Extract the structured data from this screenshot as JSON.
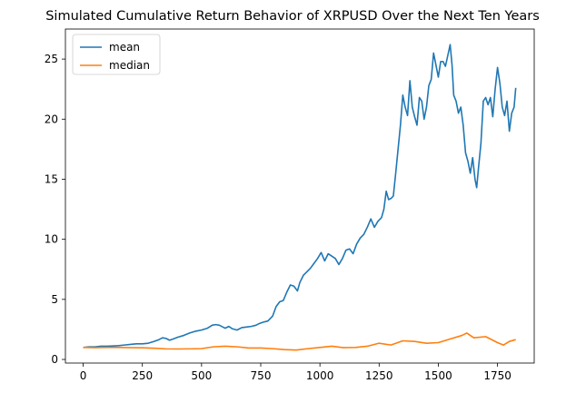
{
  "chart_data": {
    "type": "line",
    "title": "Simulated Cumulative Return Behavior of XRPUSD Over the Next Ten Years",
    "xlabel": "",
    "ylabel": "",
    "xlim": [
      -75,
      1905
    ],
    "ylim": [
      -0.3,
      27.5
    ],
    "xticks": [
      0,
      250,
      500,
      750,
      1000,
      1250,
      1500,
      1750
    ],
    "yticks": [
      0,
      5,
      10,
      15,
      20,
      25
    ],
    "grid": false,
    "legend": "top-left",
    "series": [
      {
        "name": "mean",
        "color": "#1f77b4",
        "points": [
          [
            0,
            1.0
          ],
          [
            25,
            1.05
          ],
          [
            50,
            1.05
          ],
          [
            75,
            1.1
          ],
          [
            100,
            1.1
          ],
          [
            125,
            1.12
          ],
          [
            150,
            1.15
          ],
          [
            175,
            1.2
          ],
          [
            200,
            1.25
          ],
          [
            225,
            1.3
          ],
          [
            250,
            1.3
          ],
          [
            275,
            1.35
          ],
          [
            300,
            1.5
          ],
          [
            320,
            1.65
          ],
          [
            335,
            1.8
          ],
          [
            350,
            1.75
          ],
          [
            365,
            1.6
          ],
          [
            380,
            1.7
          ],
          [
            400,
            1.85
          ],
          [
            425,
            2.0
          ],
          [
            450,
            2.2
          ],
          [
            475,
            2.35
          ],
          [
            500,
            2.45
          ],
          [
            525,
            2.6
          ],
          [
            545,
            2.85
          ],
          [
            560,
            2.9
          ],
          [
            575,
            2.85
          ],
          [
            590,
            2.7
          ],
          [
            600,
            2.6
          ],
          [
            615,
            2.75
          ],
          [
            630,
            2.55
          ],
          [
            650,
            2.45
          ],
          [
            670,
            2.65
          ],
          [
            690,
            2.7
          ],
          [
            710,
            2.75
          ],
          [
            730,
            2.85
          ],
          [
            745,
            3.0
          ],
          [
            760,
            3.1
          ],
          [
            780,
            3.2
          ],
          [
            800,
            3.6
          ],
          [
            815,
            4.4
          ],
          [
            830,
            4.8
          ],
          [
            845,
            4.9
          ],
          [
            860,
            5.6
          ],
          [
            875,
            6.2
          ],
          [
            890,
            6.1
          ],
          [
            905,
            5.7
          ],
          [
            915,
            6.4
          ],
          [
            930,
            7.0
          ],
          [
            945,
            7.3
          ],
          [
            960,
            7.6
          ],
          [
            975,
            8.0
          ],
          [
            990,
            8.4
          ],
          [
            1005,
            8.9
          ],
          [
            1020,
            8.2
          ],
          [
            1035,
            8.8
          ],
          [
            1050,
            8.6
          ],
          [
            1065,
            8.4
          ],
          [
            1080,
            7.9
          ],
          [
            1095,
            8.4
          ],
          [
            1110,
            9.1
          ],
          [
            1125,
            9.2
          ],
          [
            1140,
            8.8
          ],
          [
            1155,
            9.6
          ],
          [
            1170,
            10.1
          ],
          [
            1185,
            10.4
          ],
          [
            1200,
            11.0
          ],
          [
            1215,
            11.7
          ],
          [
            1230,
            11.0
          ],
          [
            1245,
            11.5
          ],
          [
            1260,
            11.8
          ],
          [
            1270,
            12.5
          ],
          [
            1280,
            14.0
          ],
          [
            1290,
            13.3
          ],
          [
            1300,
            13.4
          ],
          [
            1310,
            13.6
          ],
          [
            1320,
            15.5
          ],
          [
            1330,
            17.5
          ],
          [
            1340,
            19.5
          ],
          [
            1350,
            22.0
          ],
          [
            1360,
            21.0
          ],
          [
            1370,
            20.3
          ],
          [
            1380,
            23.2
          ],
          [
            1390,
            21.0
          ],
          [
            1400,
            20.2
          ],
          [
            1410,
            19.5
          ],
          [
            1420,
            21.8
          ],
          [
            1430,
            21.5
          ],
          [
            1440,
            20.0
          ],
          [
            1450,
            21.0
          ],
          [
            1460,
            22.8
          ],
          [
            1470,
            23.3
          ],
          [
            1480,
            25.5
          ],
          [
            1490,
            24.5
          ],
          [
            1500,
            23.5
          ],
          [
            1510,
            24.8
          ],
          [
            1520,
            24.8
          ],
          [
            1530,
            24.4
          ],
          [
            1540,
            25.3
          ],
          [
            1550,
            26.2
          ],
          [
            1558,
            24.5
          ],
          [
            1565,
            22.0
          ],
          [
            1575,
            21.5
          ],
          [
            1585,
            20.5
          ],
          [
            1595,
            21.0
          ],
          [
            1605,
            19.5
          ],
          [
            1615,
            17.2
          ],
          [
            1625,
            16.5
          ],
          [
            1635,
            15.5
          ],
          [
            1645,
            16.8
          ],
          [
            1655,
            15.0
          ],
          [
            1662,
            14.3
          ],
          [
            1670,
            16.0
          ],
          [
            1680,
            18.0
          ],
          [
            1690,
            21.5
          ],
          [
            1700,
            21.8
          ],
          [
            1710,
            21.2
          ],
          [
            1720,
            21.8
          ],
          [
            1730,
            20.2
          ],
          [
            1740,
            22.5
          ],
          [
            1750,
            24.3
          ],
          [
            1760,
            23.0
          ],
          [
            1770,
            21.0
          ],
          [
            1780,
            20.3
          ],
          [
            1790,
            21.5
          ],
          [
            1800,
            19.0
          ],
          [
            1810,
            20.5
          ],
          [
            1820,
            21.0
          ],
          [
            1827,
            22.6
          ]
        ]
      },
      {
        "name": "median",
        "color": "#ff7f0e",
        "points": [
          [
            0,
            1.0
          ],
          [
            50,
            0.98
          ],
          [
            100,
            1.0
          ],
          [
            150,
            1.0
          ],
          [
            200,
            0.98
          ],
          [
            250,
            0.97
          ],
          [
            300,
            0.93
          ],
          [
            350,
            0.88
          ],
          [
            400,
            0.87
          ],
          [
            450,
            0.88
          ],
          [
            500,
            0.9
          ],
          [
            550,
            1.05
          ],
          [
            600,
            1.1
          ],
          [
            650,
            1.05
          ],
          [
            700,
            0.95
          ],
          [
            750,
            0.95
          ],
          [
            800,
            0.9
          ],
          [
            850,
            0.82
          ],
          [
            900,
            0.78
          ],
          [
            950,
            0.9
          ],
          [
            1000,
            1.0
          ],
          [
            1050,
            1.1
          ],
          [
            1100,
            0.98
          ],
          [
            1150,
            1.0
          ],
          [
            1200,
            1.1
          ],
          [
            1250,
            1.35
          ],
          [
            1300,
            1.2
          ],
          [
            1350,
            1.55
          ],
          [
            1400,
            1.5
          ],
          [
            1450,
            1.35
          ],
          [
            1500,
            1.4
          ],
          [
            1550,
            1.7
          ],
          [
            1600,
            2.0
          ],
          [
            1620,
            2.2
          ],
          [
            1650,
            1.8
          ],
          [
            1700,
            1.9
          ],
          [
            1750,
            1.4
          ],
          [
            1775,
            1.2
          ],
          [
            1800,
            1.5
          ],
          [
            1827,
            1.65
          ]
        ]
      }
    ]
  }
}
